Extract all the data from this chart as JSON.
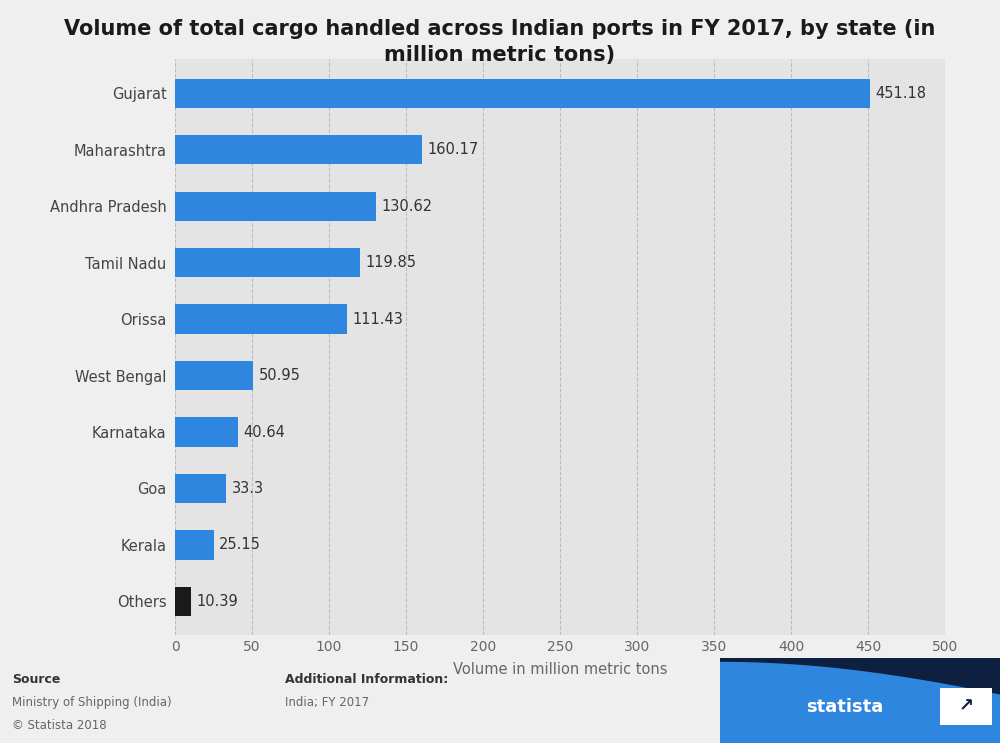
{
  "title": "Volume of total cargo handled across Indian ports in FY 2017, by state (in\nmillion metric tons)",
  "categories": [
    "Gujarat",
    "Maharashtra",
    "Andhra Pradesh",
    "Tamil Nadu",
    "Orissa",
    "West Bengal",
    "Karnataka",
    "Goa",
    "Kerala",
    "Others"
  ],
  "values": [
    451.18,
    160.17,
    130.62,
    119.85,
    111.43,
    50.95,
    40.64,
    33.3,
    25.15,
    10.39
  ],
  "bar_colors": [
    "#2e86de",
    "#2e86de",
    "#2e86de",
    "#2e86de",
    "#2e86de",
    "#2e86de",
    "#2e86de",
    "#2e86de",
    "#2e86de",
    "#1a1a1a"
  ],
  "xlabel": "Volume in million metric tons",
  "xlim": [
    0,
    500
  ],
  "xticks": [
    0,
    50,
    100,
    150,
    200,
    250,
    300,
    350,
    400,
    450,
    500
  ],
  "bg_color": "#efefef",
  "plot_bg_color": "#e4e4e4",
  "title_fontsize": 15,
  "label_fontsize": 10.5,
  "tick_fontsize": 10,
  "value_label_fontsize": 10.5,
  "bar_height": 0.52,
  "footer_bg": "#efefef",
  "navy_color": "#0d2040",
  "blue_color": "#2e86de",
  "top_line_color": "#2e86de"
}
